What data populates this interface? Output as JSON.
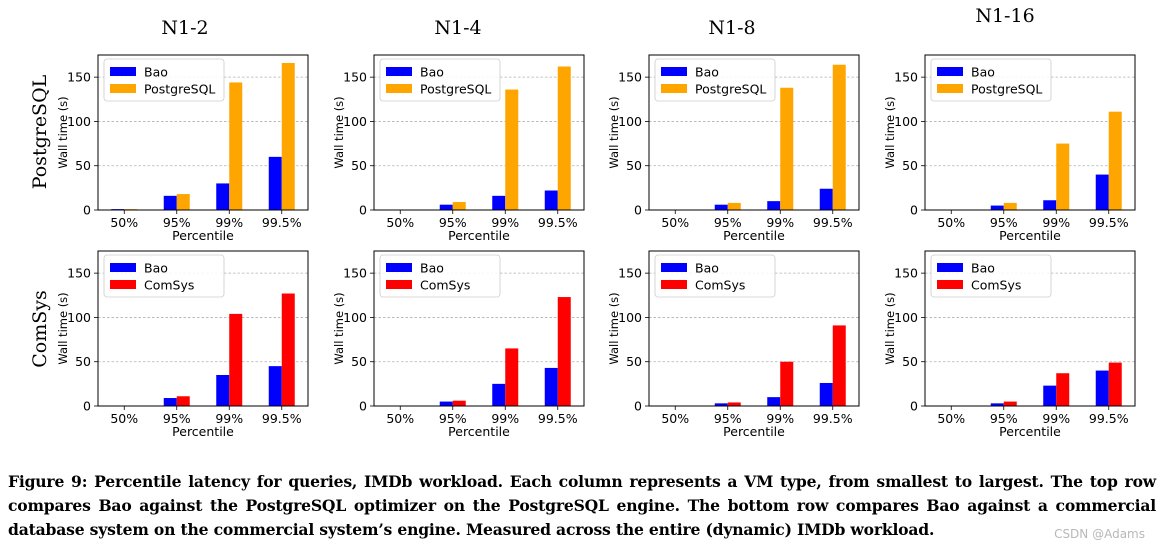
{
  "columns": [
    "N1-2",
    "N1-4",
    "N1-8",
    "N1-16"
  ],
  "rows": [
    "PostgreSQL",
    "ComSys"
  ],
  "colors": {
    "bao": "#0000ff",
    "postgresql": "#ffa500",
    "comsys": "#ff0000",
    "grid": "#b0b0b0"
  },
  "chart_data": [
    {
      "type": "bar",
      "title": "N1-2",
      "row": "PostgreSQL",
      "categories": [
        "50%",
        "95%",
        "99%",
        "99.5%"
      ],
      "series": [
        {
          "name": "Bao",
          "values": [
            1,
            16,
            30,
            60
          ]
        },
        {
          "name": "PostgreSQL",
          "values": [
            1,
            18,
            144,
            166
          ]
        }
      ],
      "xlabel": "Percentile",
      "ylabel": "Wall time (s)",
      "ylim": [
        0,
        175
      ],
      "yticks": [
        0,
        50,
        100,
        150
      ],
      "grid": true,
      "legend": "top-left"
    },
    {
      "type": "bar",
      "title": "N1-4",
      "row": "PostgreSQL",
      "categories": [
        "50%",
        "95%",
        "99%",
        "99.5%"
      ],
      "series": [
        {
          "name": "Bao",
          "values": [
            0.5,
            6,
            16,
            22
          ]
        },
        {
          "name": "PostgreSQL",
          "values": [
            0.5,
            9,
            136,
            162
          ]
        }
      ],
      "xlabel": "Percentile",
      "ylabel": "Wall time (s)",
      "ylim": [
        0,
        175
      ],
      "yticks": [
        0,
        50,
        100,
        150
      ],
      "grid": true,
      "legend": "top-left"
    },
    {
      "type": "bar",
      "title": "N1-8",
      "row": "PostgreSQL",
      "categories": [
        "50%",
        "95%",
        "99%",
        "99.5%"
      ],
      "series": [
        {
          "name": "Bao",
          "values": [
            0.5,
            6,
            10,
            24
          ]
        },
        {
          "name": "PostgreSQL",
          "values": [
            0.5,
            8,
            138,
            164
          ]
        }
      ],
      "xlabel": "Percentile",
      "ylabel": "Wall time (s)",
      "ylim": [
        0,
        175
      ],
      "yticks": [
        0,
        50,
        100,
        150
      ],
      "grid": true,
      "legend": "top-left"
    },
    {
      "type": "bar",
      "title": "N1-16",
      "row": "PostgreSQL",
      "categories": [
        "50%",
        "95%",
        "99%",
        "99.5%"
      ],
      "series": [
        {
          "name": "Bao",
          "values": [
            0.5,
            5,
            11,
            40
          ]
        },
        {
          "name": "PostgreSQL",
          "values": [
            0.5,
            8,
            75,
            111
          ]
        }
      ],
      "xlabel": "Percentile",
      "ylabel": "Wall time (s)",
      "ylim": [
        0,
        175
      ],
      "yticks": [
        0,
        50,
        100,
        150
      ],
      "grid": true,
      "legend": "top-left"
    },
    {
      "type": "bar",
      "title": "N1-2",
      "row": "ComSys",
      "categories": [
        "50%",
        "95%",
        "99%",
        "99.5%"
      ],
      "series": [
        {
          "name": "Bao",
          "values": [
            0.5,
            9,
            35,
            45
          ]
        },
        {
          "name": "ComSys",
          "values": [
            0.5,
            11,
            104,
            127
          ]
        }
      ],
      "xlabel": "Percentile",
      "ylabel": "Wall time (s)",
      "ylim": [
        0,
        175
      ],
      "yticks": [
        0,
        50,
        100,
        150
      ],
      "grid": true,
      "legend": "top-left"
    },
    {
      "type": "bar",
      "title": "N1-4",
      "row": "ComSys",
      "categories": [
        "50%",
        "95%",
        "99%",
        "99.5%"
      ],
      "series": [
        {
          "name": "Bao",
          "values": [
            0.5,
            5,
            25,
            43
          ]
        },
        {
          "name": "ComSys",
          "values": [
            0.5,
            6,
            65,
            123
          ]
        }
      ],
      "xlabel": "Percentile",
      "ylabel": "Wall time (s)",
      "ylim": [
        0,
        175
      ],
      "yticks": [
        0,
        50,
        100,
        150
      ],
      "grid": true,
      "legend": "top-left"
    },
    {
      "type": "bar",
      "title": "N1-8",
      "row": "ComSys",
      "categories": [
        "50%",
        "95%",
        "99%",
        "99.5%"
      ],
      "series": [
        {
          "name": "Bao",
          "values": [
            0.5,
            3,
            10,
            26
          ]
        },
        {
          "name": "ComSys",
          "values": [
            0.5,
            4,
            50,
            91
          ]
        }
      ],
      "xlabel": "Percentile",
      "ylabel": "Wall time (s)",
      "ylim": [
        0,
        175
      ],
      "yticks": [
        0,
        50,
        100,
        150
      ],
      "grid": true,
      "legend": "top-left"
    },
    {
      "type": "bar",
      "title": "N1-16",
      "row": "ComSys",
      "categories": [
        "50%",
        "95%",
        "99%",
        "99.5%"
      ],
      "series": [
        {
          "name": "Bao",
          "values": [
            0.5,
            3,
            23,
            40
          ]
        },
        {
          "name": "ComSys",
          "values": [
            0.5,
            5,
            37,
            49
          ]
        }
      ],
      "xlabel": "Percentile",
      "ylabel": "Wall time (s)",
      "ylim": [
        0,
        175
      ],
      "yticks": [
        0,
        50,
        100,
        150
      ],
      "grid": true,
      "legend": "top-left"
    }
  ],
  "caption": "Figure 9: Percentile latency for queries, IMDb workload. Each column represents a VM type, from smallest to largest. The top row compares Bao against the PostgreSQL optimizer on the PostgreSQL engine. The bottom row compares Bao against a commercial database system on the commercial system’s engine. Measured across the entire (dynamic) IMDb workload.",
  "watermark": "CSDN @Adams"
}
